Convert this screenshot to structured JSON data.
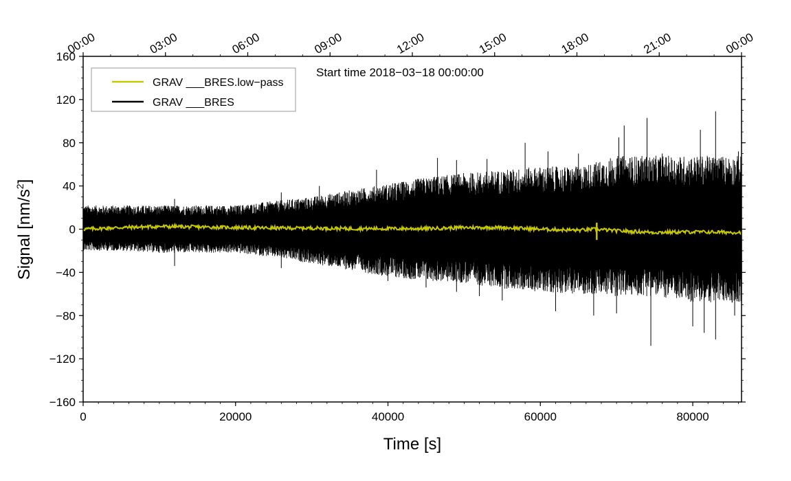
{
  "chart_data": {
    "type": "line",
    "xlabel": "Time [s]",
    "ylabel": "Signal [nm/s",
    "ylabel_sup": "2",
    "ylabel_end": "]",
    "annotation": "Start time 2018−03−18 00:00:00",
    "xlim": [
      0,
      86400
    ],
    "ylim": [
      -160,
      160
    ],
    "x_ticks": [
      0,
      20000,
      40000,
      60000,
      80000
    ],
    "x_tick_labels": [
      "0",
      "20000",
      "40000",
      "60000",
      "80000"
    ],
    "y_ticks": [
      -160,
      -120,
      -80,
      -40,
      0,
      40,
      80,
      120,
      160
    ],
    "y_tick_labels": [
      "−160",
      "−120",
      "−80",
      "−40",
      "0",
      "40",
      "80",
      "120",
      "160"
    ],
    "top_axis_ticks": [
      0,
      10800,
      21600,
      32400,
      43200,
      54000,
      64800,
      75600,
      86400
    ],
    "top_axis_labels": [
      "00:00",
      "03:00",
      "06:00",
      "09:00",
      "12:00",
      "15:00",
      "18:00",
      "21:00",
      "00:00"
    ],
    "legend_position": "top-left",
    "series": [
      {
        "name": "GRAV ___BRES.low−pass",
        "color": "#c8c800",
        "x": [
          0,
          5000,
          10000,
          15000,
          20000,
          25000,
          30000,
          35000,
          40000,
          45000,
          50000,
          55000,
          60000,
          65000,
          67400,
          70000,
          75000,
          80000,
          86400
        ],
        "y": [
          0,
          1.5,
          2.5,
          2,
          1.5,
          1,
          1,
          0.5,
          0.5,
          0.5,
          1.5,
          1.5,
          0,
          -1,
          0,
          -1.5,
          -3,
          -2.5,
          -3
        ],
        "spikes": [
          [
            67400,
            6,
            -10
          ]
        ]
      },
      {
        "name": "GRAV ___BRES",
        "color": "#000000",
        "x": [
          0,
          5000,
          10000,
          15000,
          20000,
          25000,
          30000,
          35000,
          40000,
          45000,
          50000,
          55000,
          60000,
          65000,
          70000,
          75000,
          80000,
          86400
        ],
        "upper": [
          22,
          22,
          22,
          22,
          22,
          26,
          30,
          36,
          42,
          48,
          52,
          55,
          58,
          58,
          68,
          68,
          68,
          68
        ],
        "lower": [
          -20,
          -20,
          -22,
          -22,
          -22,
          -26,
          -32,
          -38,
          -44,
          -48,
          -50,
          -55,
          -58,
          -60,
          -62,
          -62,
          -68,
          -68
        ],
        "spikes_up": [
          [
            12000,
            28
          ],
          [
            26000,
            34
          ],
          [
            31000,
            40
          ],
          [
            38500,
            55
          ],
          [
            46500,
            66
          ],
          [
            49000,
            64
          ],
          [
            53000,
            65
          ],
          [
            58000,
            80
          ],
          [
            61000,
            72
          ],
          [
            65000,
            70
          ],
          [
            70300,
            85
          ],
          [
            71000,
            96
          ],
          [
            74000,
            103
          ],
          [
            76000,
            70
          ],
          [
            81000,
            92
          ],
          [
            83000,
            109
          ],
          [
            86000,
            72
          ]
        ],
        "spikes_down": [
          [
            12000,
            -34
          ],
          [
            26000,
            -36
          ],
          [
            40000,
            -48
          ],
          [
            45000,
            -54
          ],
          [
            49000,
            -58
          ],
          [
            52000,
            -62
          ],
          [
            55000,
            -66
          ],
          [
            62000,
            -76
          ],
          [
            67000,
            -80
          ],
          [
            70000,
            -78
          ],
          [
            74500,
            -108
          ],
          [
            80000,
            -90
          ],
          [
            81500,
            -96
          ],
          [
            83000,
            -102
          ],
          [
            85500,
            -80
          ]
        ]
      }
    ]
  }
}
